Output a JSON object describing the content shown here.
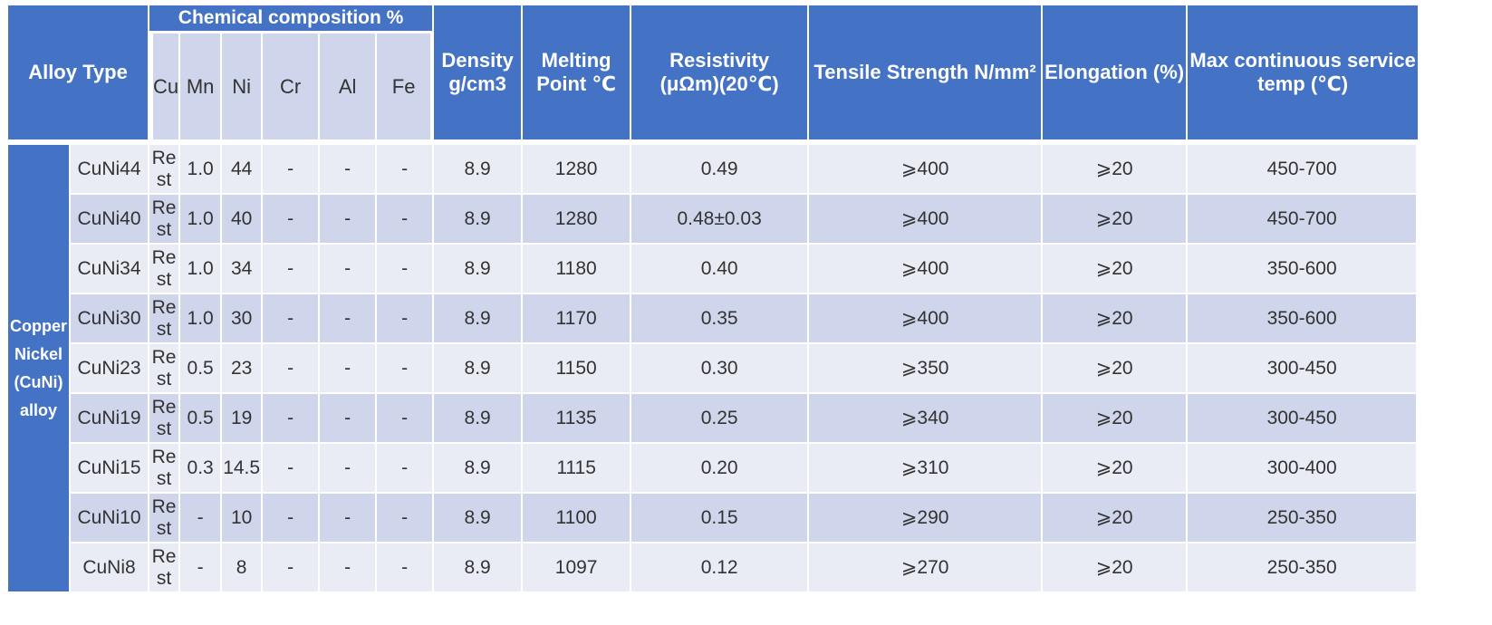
{
  "header": {
    "alloy_type": "Alloy Type",
    "chemical_composition": "Chemical composition %",
    "elements": [
      "Cu",
      "Mn",
      "Ni",
      "Cr",
      "Al",
      "Fe"
    ],
    "density_line1": "Density",
    "density_line2": "g/cm3",
    "melting_line1": "Melting",
    "melting_line2": "Point  ℃",
    "resistivity_line1": "Resistivity",
    "resistivity_line2": "(μΩm)(20℃)",
    "tensile": "Tensile Strength N/mm²",
    "elongation": "Elongation (%)",
    "max_temp_line1": "Max continuous service",
    "max_temp_line2": "temp (℃)"
  },
  "group": {
    "line1": "Copper",
    "line2": "Nickel",
    "line3": "(CuNi)",
    "line4": "alloy"
  },
  "rows": [
    {
      "name": "CuNi44",
      "cu1": "Re",
      "cu2": "st",
      "mn": "1.0",
      "ni": "44",
      "cr": "-",
      "al": "-",
      "fe": "-",
      "density": "8.9",
      "melting": "1280",
      "resistivity": "0.49",
      "tensile": "⩾400",
      "elongation": "⩾20",
      "max_temp": "450-700"
    },
    {
      "name": "CuNi40",
      "cu1": "Re",
      "cu2": "st",
      "mn": "1.0",
      "ni": "40",
      "cr": "-",
      "al": "-",
      "fe": "-",
      "density": "8.9",
      "melting": "1280",
      "resistivity": "0.48±0.03",
      "tensile": "⩾400",
      "elongation": "⩾20",
      "max_temp": "450-700"
    },
    {
      "name": "CuNi34",
      "cu1": "Re",
      "cu2": "st",
      "mn": "1.0",
      "ni": "34",
      "cr": "-",
      "al": "-",
      "fe": "-",
      "density": "8.9",
      "melting": "1180",
      "resistivity": "0.40",
      "tensile": "⩾400",
      "elongation": "⩾20",
      "max_temp": "350-600"
    },
    {
      "name": "CuNi30",
      "cu1": "Re",
      "cu2": "st",
      "mn": "1.0",
      "ni": "30",
      "cr": "-",
      "al": "-",
      "fe": "-",
      "density": "8.9",
      "melting": "1170",
      "resistivity": "0.35",
      "tensile": "⩾400",
      "elongation": "⩾20",
      "max_temp": "350-600"
    },
    {
      "name": "CuNi23",
      "cu1": "Re",
      "cu2": "st",
      "mn": "0.5",
      "ni": "23",
      "cr": "-",
      "al": "-",
      "fe": "-",
      "density": "8.9",
      "melting": "1150",
      "resistivity": "0.30",
      "tensile": "⩾350",
      "elongation": "⩾20",
      "max_temp": "300-450"
    },
    {
      "name": "CuNi19",
      "cu1": "Re",
      "cu2": "st",
      "mn": "0.5",
      "ni": "19",
      "cr": "-",
      "al": "-",
      "fe": "-",
      "density": "8.9",
      "melting": "1135",
      "resistivity": "0.25",
      "tensile": "⩾340",
      "elongation": "⩾20",
      "max_temp": "300-450"
    },
    {
      "name": "CuNi15",
      "cu1": "Re",
      "cu2": "st",
      "mn": "0.3",
      "ni": "14.5",
      "cr": "-",
      "al": "-",
      "fe": "-",
      "density": "8.9",
      "melting": "1115",
      "resistivity": "0.20",
      "tensile": "⩾310",
      "elongation": "⩾20",
      "max_temp": "300-400"
    },
    {
      "name": "CuNi10",
      "cu1": "Re",
      "cu2": "st",
      "mn": "-",
      "ni": "10",
      "cr": "-",
      "al": "-",
      "fe": "-",
      "density": "8.9",
      "melting": "1100",
      "resistivity": "0.15",
      "tensile": "⩾290",
      "elongation": "⩾20",
      "max_temp": "250-350"
    },
    {
      "name": "CuNi8",
      "cu1": "Re",
      "cu2": "st",
      "mn": "-",
      "ni": "8",
      "cr": "-",
      "al": "-",
      "fe": "-",
      "density": "8.9",
      "melting": "1097",
      "resistivity": "0.12",
      "tensile": "⩾270",
      "elongation": "⩾20",
      "max_temp": "250-350"
    }
  ]
}
